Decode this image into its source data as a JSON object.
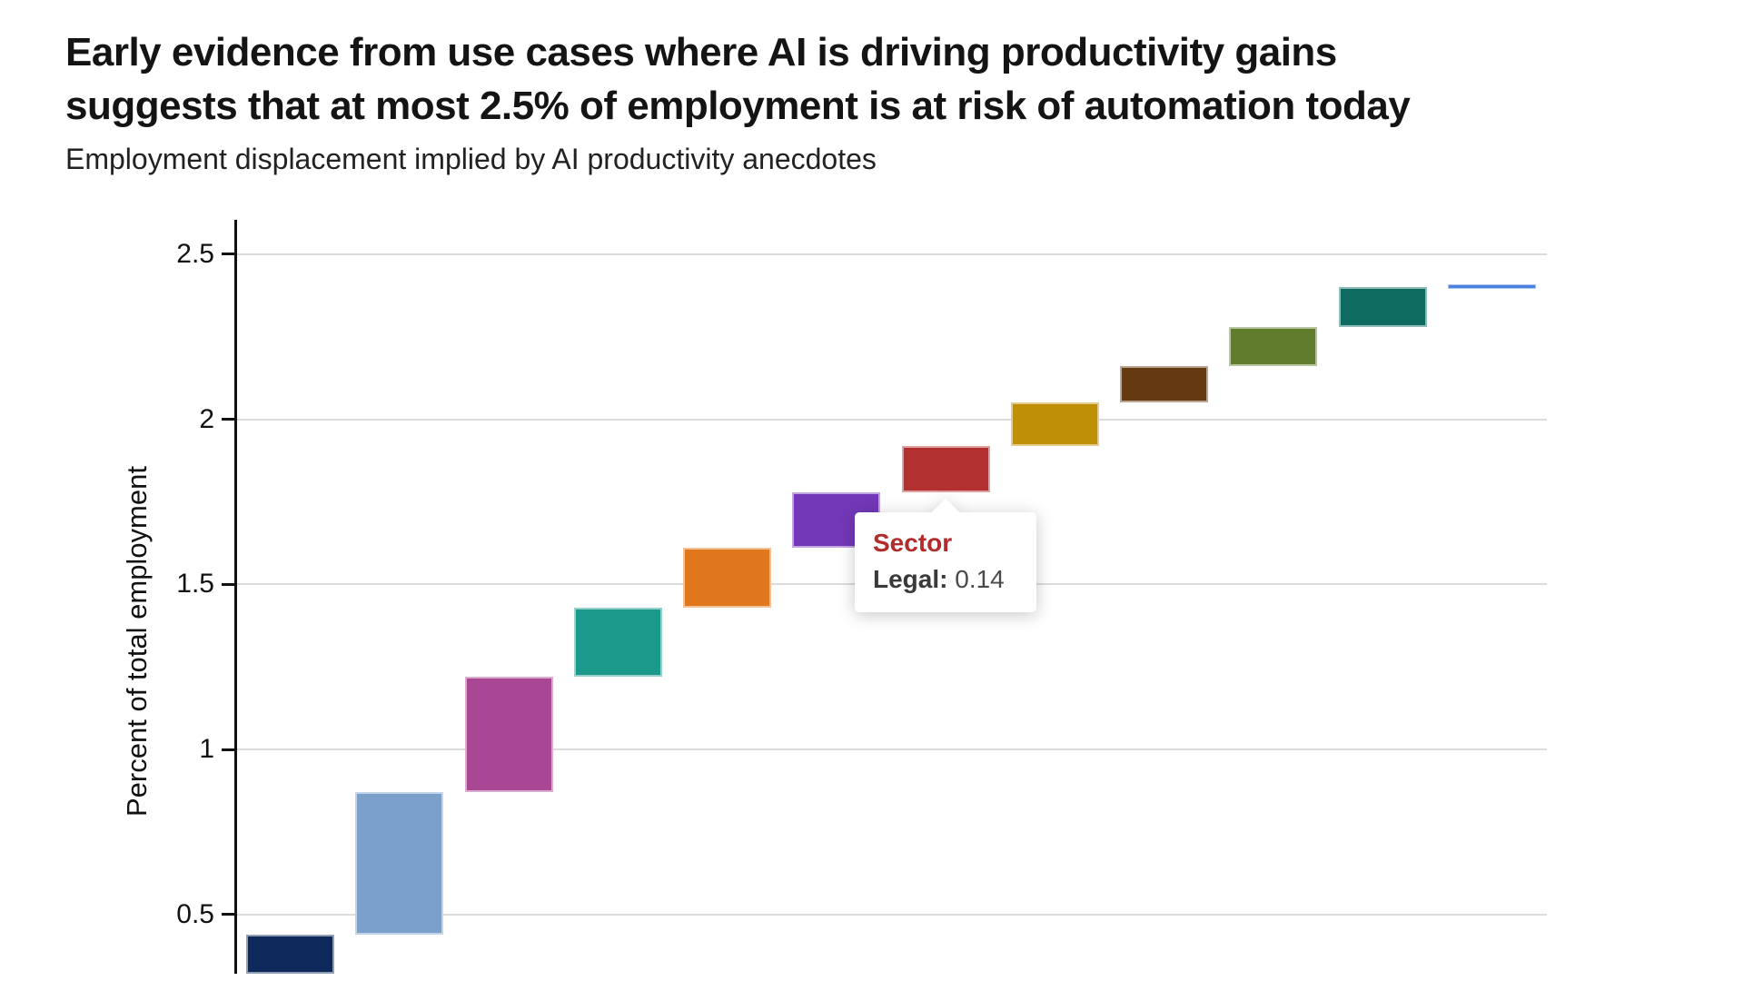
{
  "header": {
    "title_line1": "Early evidence from use cases where AI is driving productivity gains",
    "title_line2": "suggests that at most 2.5% of employment is at risk of automation today",
    "subtitle": "Employment displacement implied by AI productivity anecdotes"
  },
  "chart_data": {
    "type": "bar",
    "subtype": "waterfall",
    "title": "Employment displacement implied by AI productivity anecdotes",
    "ylabel": "Percent of total employment",
    "grid": "horizontal",
    "y_ticks": [
      {
        "value": 0.5,
        "label": "0.5"
      },
      {
        "value": 1,
        "label": "1"
      },
      {
        "value": 1.5,
        "label": "1.5"
      },
      {
        "value": 2,
        "label": "2"
      },
      {
        "value": 2.5,
        "label": "2.5"
      }
    ],
    "y_view": {
      "min": 0.321,
      "max": 2.604
    },
    "x_axis_note": "sector labels cropped out of view at bottom of screenshot",
    "segments": [
      {
        "label": "",
        "color": "#0E2A5C",
        "start": 0.0,
        "end": 0.44,
        "increment": 0.44
      },
      {
        "label": "",
        "color": "#7BA0CC",
        "start": 0.44,
        "end": 0.87,
        "increment": 0.43
      },
      {
        "label": "",
        "color": "#AA4795",
        "start": 0.87,
        "end": 1.22,
        "increment": 0.35
      },
      {
        "label": "",
        "color": "#1B998B",
        "start": 1.22,
        "end": 1.43,
        "increment": 0.21
      },
      {
        "label": "",
        "color": "#E0771D",
        "start": 1.43,
        "end": 1.61,
        "increment": 0.18
      },
      {
        "label": "",
        "color": "#7338B8",
        "start": 1.61,
        "end": 1.78,
        "increment": 0.17
      },
      {
        "label": "Legal",
        "color": "#B23030",
        "start": 1.78,
        "end": 1.92,
        "increment": 0.14
      },
      {
        "label": "",
        "color": "#BF9005",
        "start": 1.92,
        "end": 2.05,
        "increment": 0.13
      },
      {
        "label": "",
        "color": "#653A11",
        "start": 2.05,
        "end": 2.16,
        "increment": 0.11
      },
      {
        "label": "",
        "color": "#5F7D2C",
        "start": 2.16,
        "end": 2.28,
        "increment": 0.12
      },
      {
        "label": "",
        "color": "#0E6B60",
        "start": 2.28,
        "end": 2.4,
        "increment": 0.12
      },
      {
        "label": "",
        "color": "#4A80E0",
        "start": 2.4,
        "end": 2.41,
        "increment": 0.01
      }
    ],
    "tooltip": {
      "header": "Sector",
      "series_label": "Legal:",
      "value": "0.14",
      "anchor_segment_index": 6
    }
  }
}
